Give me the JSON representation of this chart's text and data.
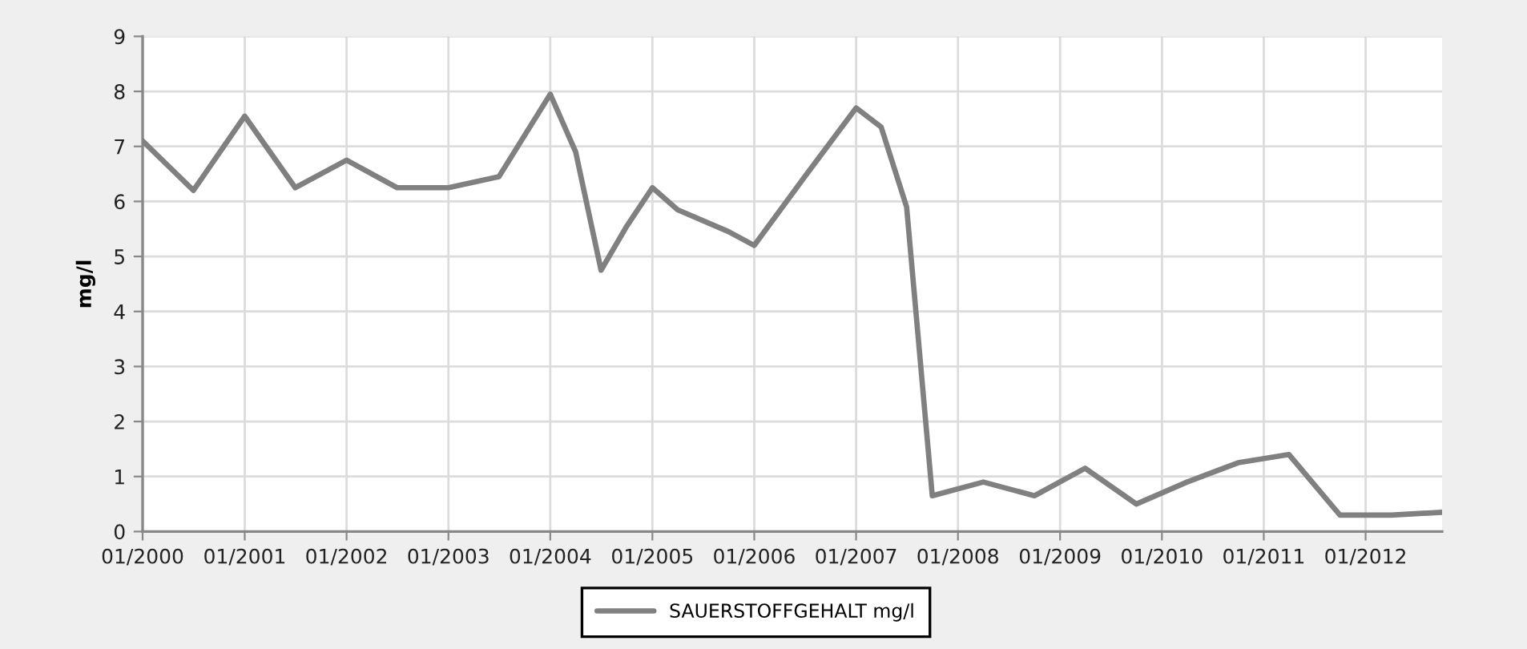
{
  "chart_data": {
    "type": "line",
    "ylabel": "mg/l",
    "series": [
      {
        "name": "SAUERSTOFFGEHALT mg/l",
        "color": "#808080",
        "x": [
          "2000-01",
          "2000-07",
          "2001-01",
          "2001-07",
          "2002-01",
          "2002-07",
          "2003-01",
          "2003-07",
          "2004-01",
          "2004-04",
          "2004-07",
          "2004-10",
          "2005-01",
          "2005-04",
          "2005-10",
          "2006-01",
          "2006-07",
          "2007-01",
          "2007-04",
          "2007-07",
          "2007-10",
          "2008-04",
          "2008-10",
          "2009-04",
          "2009-10",
          "2010-04",
          "2010-10",
          "2011-04",
          "2011-10",
          "2012-04",
          "2012-10"
        ],
        "values": [
          7.1,
          6.2,
          7.55,
          6.25,
          6.75,
          6.25,
          6.25,
          6.45,
          7.95,
          6.9,
          4.75,
          5.55,
          6.25,
          5.85,
          5.45,
          5.2,
          6.45,
          7.7,
          7.35,
          5.9,
          0.65,
          0.9,
          0.65,
          1.15,
          0.5,
          0.9,
          1.25,
          1.4,
          0.3,
          0.3,
          0.35
        ]
      }
    ],
    "xlim": [
      "2000-01",
      "2012-10"
    ],
    "xticks": [
      {
        "value": "2000-01",
        "label": "01/2000"
      },
      {
        "value": "2001-01",
        "label": "01/2001"
      },
      {
        "value": "2002-01",
        "label": "01/2002"
      },
      {
        "value": "2003-01",
        "label": "01/2003"
      },
      {
        "value": "2004-01",
        "label": "01/2004"
      },
      {
        "value": "2005-01",
        "label": "01/2005"
      },
      {
        "value": "2006-01",
        "label": "01/2006"
      },
      {
        "value": "2007-01",
        "label": "01/2007"
      },
      {
        "value": "2008-01",
        "label": "01/2008"
      },
      {
        "value": "2009-01",
        "label": "01/2009"
      },
      {
        "value": "2010-01",
        "label": "01/2010"
      },
      {
        "value": "2011-01",
        "label": "01/2011"
      },
      {
        "value": "2012-01",
        "label": "01/2012"
      }
    ],
    "ylim": [
      0,
      9
    ],
    "yticks": [
      0,
      1,
      2,
      3,
      4,
      5,
      6,
      7,
      8,
      9
    ],
    "grid": true,
    "legend": "bottom"
  }
}
